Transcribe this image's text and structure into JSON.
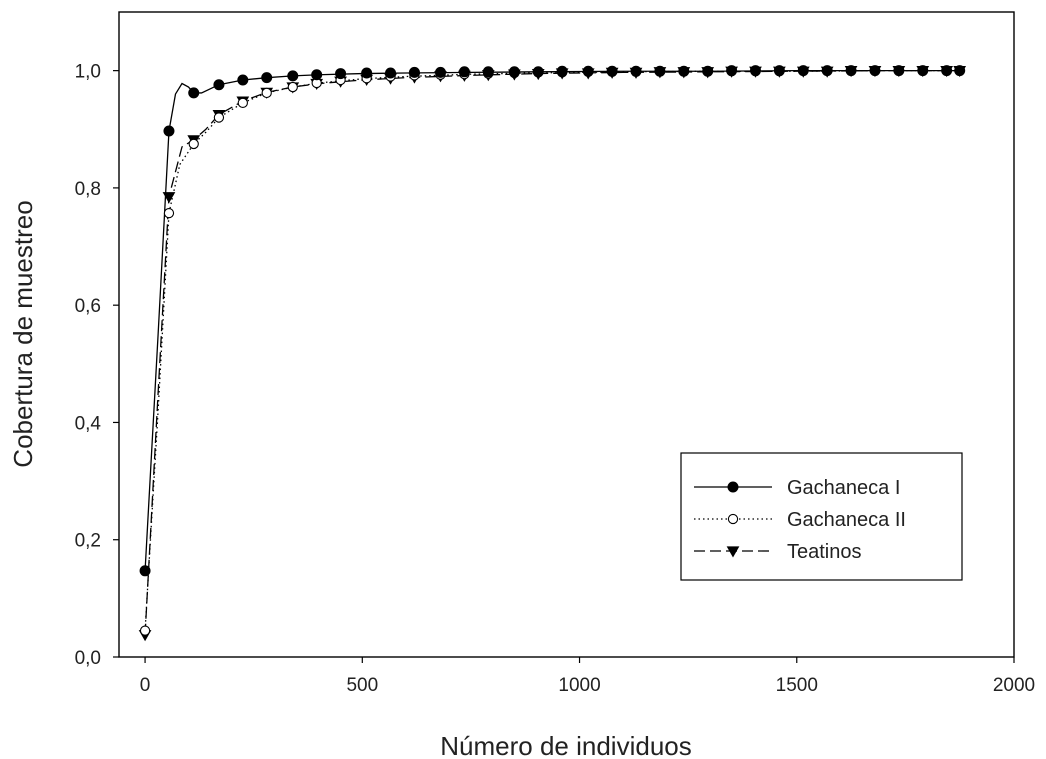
{
  "chart_data": {
    "type": "line",
    "title": "",
    "xlabel": "Número de individuos",
    "ylabel": "Cobertura de muestreo",
    "xlim": [
      -60,
      2000
    ],
    "ylim": [
      0.0,
      1.1
    ],
    "x_ticks": [
      0,
      500,
      1000,
      1500,
      2000
    ],
    "x_tick_labels": [
      "0",
      "500",
      "1000",
      "1500",
      "2000"
    ],
    "y_ticks": [
      0.0,
      0.2,
      0.4,
      0.6,
      0.8,
      1.0
    ],
    "y_tick_labels": [
      "0,0",
      "0,2",
      "0,4",
      "0,6",
      "0,8",
      "1,0"
    ],
    "grid": false,
    "legend_position": "lower-right",
    "colors": {
      "line": "#000000",
      "background": "#ffffff"
    },
    "series": [
      {
        "name": "Gachaneca I",
        "line_style": "solid",
        "marker": "filled-circle",
        "curve_x": [
          0,
          30,
          55,
          70,
          85,
          100,
          112,
          130,
          170,
          225,
          280,
          340,
          400,
          500,
          600,
          750,
          900,
          1100,
          1300,
          1500,
          1700,
          1875
        ],
        "curve_y": [
          0.147,
          0.55,
          0.897,
          0.96,
          0.978,
          0.972,
          0.962,
          0.962,
          0.976,
          0.984,
          0.988,
          0.991,
          0.993,
          0.995,
          0.996,
          0.997,
          0.998,
          0.999,
          0.999,
          1.0,
          1.0,
          1.0
        ],
        "points_x": [
          0,
          55,
          112,
          170,
          225,
          280,
          340,
          395,
          450,
          510,
          565,
          620,
          680,
          735,
          790,
          850,
          905,
          960,
          1020,
          1075,
          1130,
          1185,
          1240,
          1295,
          1350,
          1405,
          1460,
          1515,
          1570,
          1625,
          1680,
          1735,
          1790,
          1845,
          1875
        ],
        "points_y": [
          0.147,
          0.897,
          0.962,
          0.976,
          0.984,
          0.988,
          0.991,
          0.993,
          0.995,
          0.996,
          0.996,
          0.997,
          0.997,
          0.998,
          0.998,
          0.998,
          0.998,
          0.999,
          0.999,
          0.999,
          0.999,
          0.999,
          0.999,
          0.999,
          1.0,
          1.0,
          1.0,
          1.0,
          1.0,
          1.0,
          1.0,
          1.0,
          1.0,
          1.0,
          1.0
        ]
      },
      {
        "name": "Gachaneca II",
        "line_style": "dotted",
        "marker": "open-circle",
        "curve_x": [
          0,
          30,
          55,
          80,
          112,
          140,
          170,
          225,
          280,
          340,
          400,
          500,
          600,
          750,
          900,
          1100,
          1300,
          1500,
          1700,
          1875
        ],
        "curve_y": [
          0.045,
          0.42,
          0.757,
          0.84,
          0.875,
          0.895,
          0.92,
          0.945,
          0.962,
          0.972,
          0.979,
          0.986,
          0.99,
          0.994,
          0.996,
          0.998,
          0.999,
          0.999,
          1.0,
          1.0
        ],
        "points_x": [
          0,
          55,
          112,
          170,
          225,
          280,
          340,
          395,
          450,
          510,
          565,
          620,
          680,
          735,
          790,
          850,
          905,
          960,
          1020,
          1075,
          1130,
          1185,
          1240,
          1295,
          1350,
          1405,
          1460,
          1515,
          1570,
          1625,
          1680,
          1735,
          1790,
          1845,
          1875
        ],
        "points_y": [
          0.045,
          0.757,
          0.875,
          0.92,
          0.945,
          0.962,
          0.972,
          0.979,
          0.984,
          0.987,
          0.99,
          0.992,
          0.993,
          0.994,
          0.995,
          0.996,
          0.997,
          0.997,
          0.998,
          0.998,
          0.998,
          0.999,
          0.999,
          0.999,
          0.999,
          0.999,
          0.999,
          1.0,
          1.0,
          1.0,
          1.0,
          1.0,
          1.0,
          1.0,
          1.0
        ]
      },
      {
        "name": "Teatinos",
        "line_style": "dashed",
        "marker": "filled-triangle-down",
        "curve_x": [
          0,
          30,
          55,
          85,
          112,
          140,
          170,
          225,
          280,
          340,
          400,
          500,
          600,
          750,
          900,
          1100,
          1300,
          1500,
          1700,
          1875
        ],
        "curve_y": [
          0.038,
          0.45,
          0.785,
          0.87,
          0.882,
          0.9,
          0.925,
          0.948,
          0.963,
          0.972,
          0.978,
          0.984,
          0.988,
          0.992,
          0.995,
          0.997,
          0.998,
          0.999,
          1.0,
          1.0
        ],
        "points_x": [
          0,
          55,
          112,
          170,
          225,
          280,
          340,
          395,
          450,
          510,
          565,
          620,
          680,
          735,
          790,
          850,
          905,
          960,
          1020,
          1075,
          1130,
          1185,
          1240,
          1295,
          1350,
          1405,
          1460,
          1515,
          1570,
          1625,
          1680,
          1735,
          1790,
          1845,
          1875
        ],
        "points_y": [
          0.038,
          0.785,
          0.882,
          0.925,
          0.948,
          0.963,
          0.972,
          0.978,
          0.982,
          0.985,
          0.987,
          0.989,
          0.991,
          0.992,
          0.993,
          0.994,
          0.995,
          0.996,
          0.996,
          0.997,
          0.997,
          0.998,
          0.998,
          0.998,
          0.999,
          0.999,
          0.999,
          0.999,
          0.999,
          1.0,
          1.0,
          1.0,
          1.0,
          1.0,
          1.0
        ]
      }
    ]
  }
}
